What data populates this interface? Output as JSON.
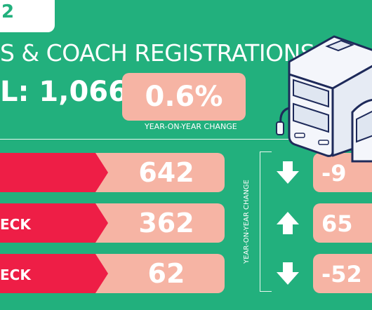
{
  "tag_text": "2",
  "title": "S & COACH REGISTRATIONS",
  "total": "L: 1,066",
  "total_change": "0.6%",
  "change_caption": "YEAR-ON-YEAR CHANGE",
  "vertical_caption": "YEAR-ON-YEAR CHANGE",
  "rows": [
    {
      "label": "",
      "value": "642",
      "direction": "down",
      "change": "-9"
    },
    {
      "label": "ECK",
      "value": "362",
      "direction": "up",
      "change": "65"
    },
    {
      "label": "ECK",
      "value": "62",
      "direction": "down",
      "change": "-52"
    }
  ],
  "colors": {
    "background": "#22b07d",
    "label_red": "#ee1e46",
    "value_pink": "#f6b4a4",
    "bus_outline": "#1e2a5a"
  },
  "icons": [
    "arrow-down-icon",
    "arrow-up-icon",
    "bus-illustration"
  ]
}
